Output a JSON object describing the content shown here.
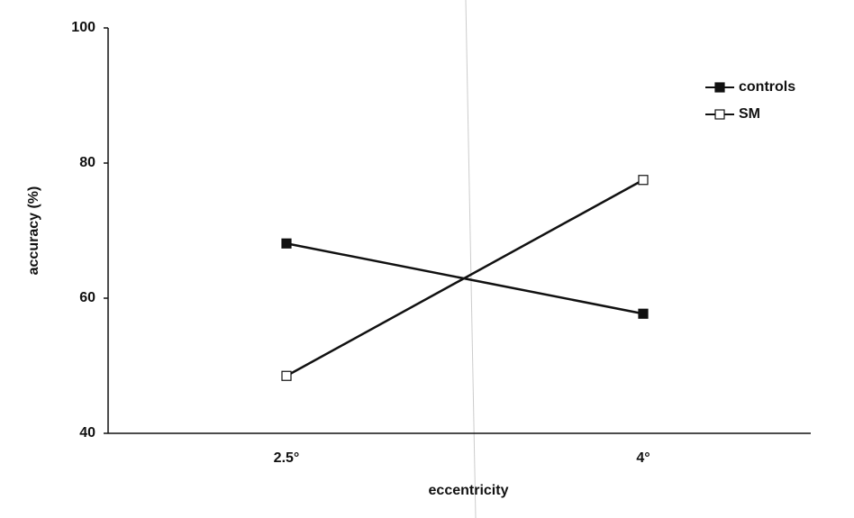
{
  "chart_data": {
    "type": "line",
    "x_label": "eccentricity",
    "y_label": "accuracy (%)",
    "categories": [
      "2.5°",
      "4°"
    ],
    "series": [
      {
        "name": "controls",
        "color": "#111111",
        "marker": "filled",
        "values": [
          68.1,
          57.7
        ]
      },
      {
        "name": "SM",
        "color": "#111111",
        "marker": "open",
        "values": [
          48.5,
          77.5
        ]
      }
    ],
    "ylim": [
      40,
      100
    ],
    "yticks": [
      40,
      60,
      80,
      100
    ],
    "legend": "upper right"
  }
}
